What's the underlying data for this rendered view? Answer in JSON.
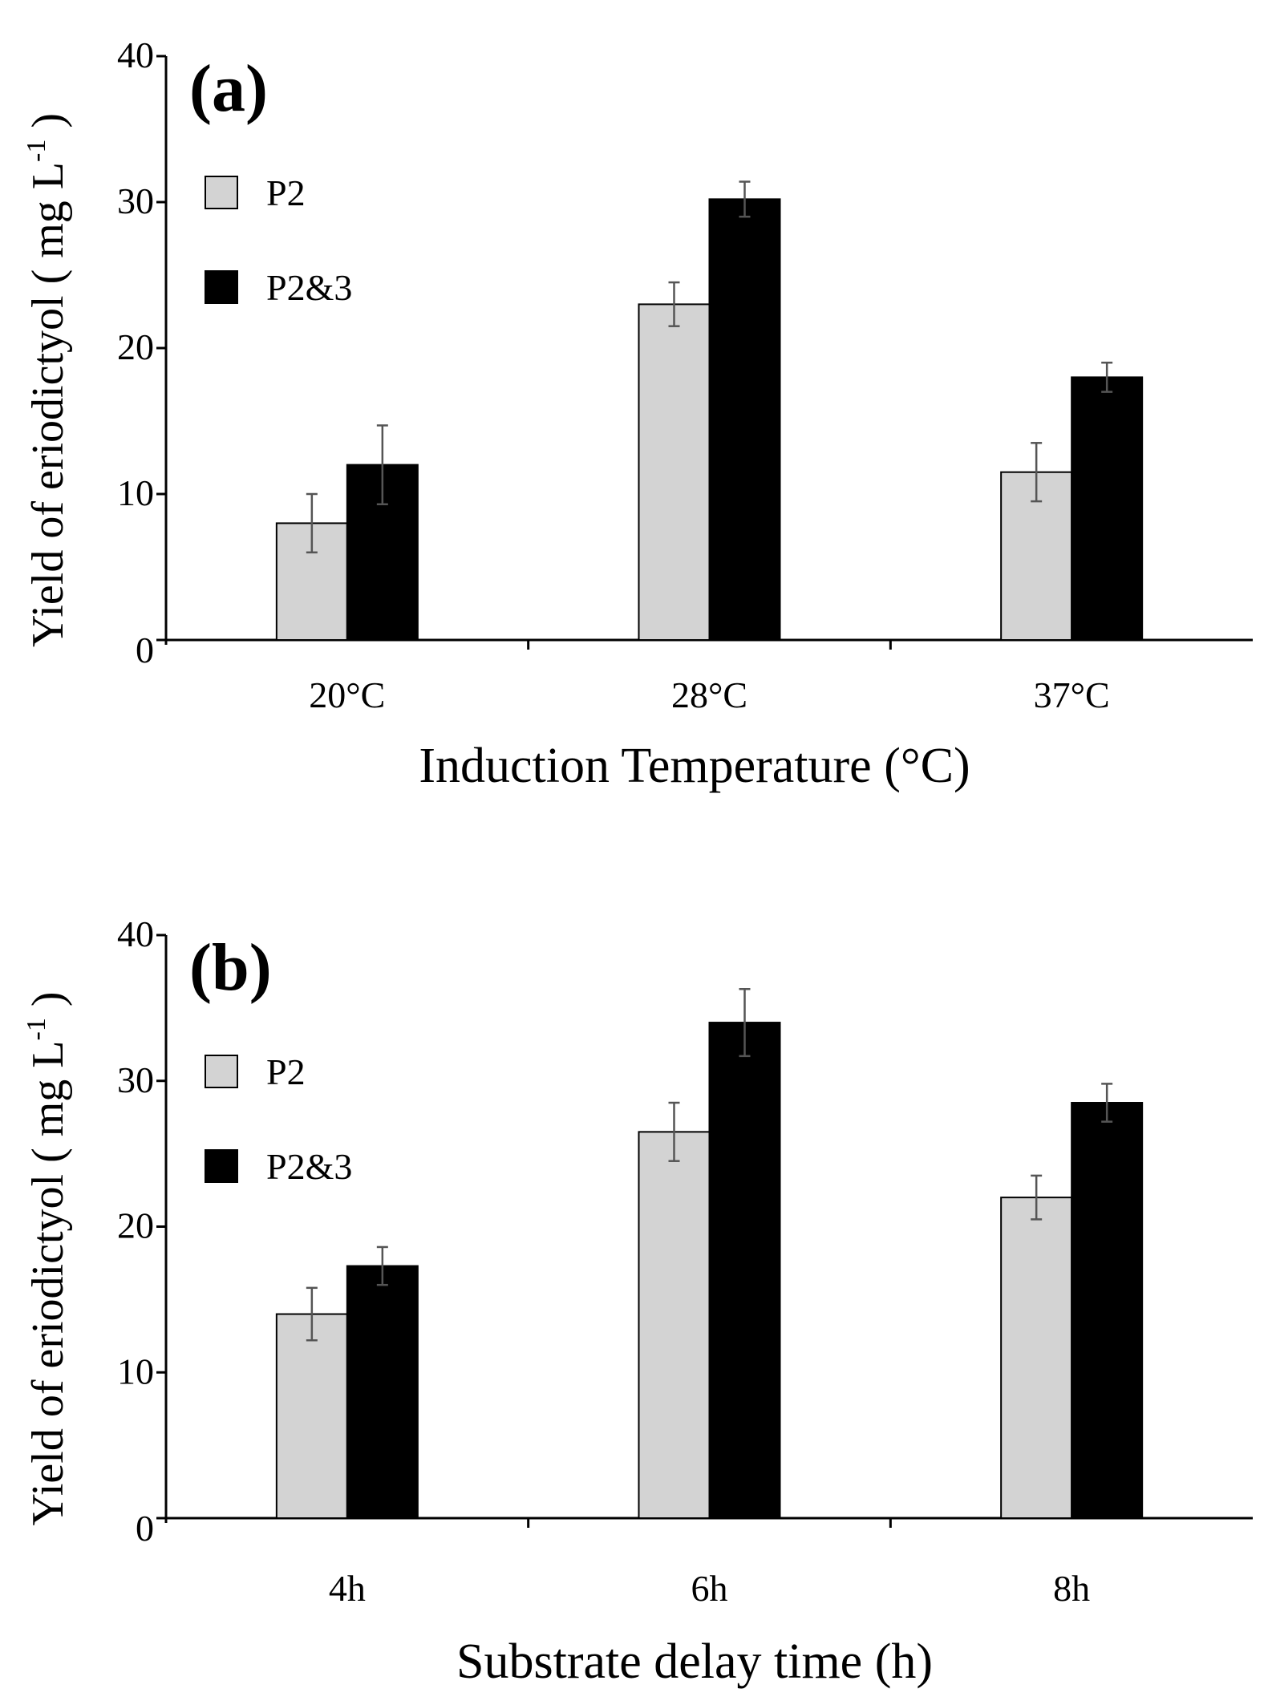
{
  "colors": {
    "P2": "#d3d3d3",
    "P2&3": "#000000",
    "error_bar": "#555555",
    "axis": "#000000"
  },
  "chart_data": [
    {
      "type": "bar",
      "panel_label": "(a)",
      "title": "",
      "xlabel": "Induction Temperature (°C)",
      "ylabel": "Yield of eriodictyol ( mg L-1 )",
      "ylabel_main": "Yield of eriodictyol ( mg L",
      "ylabel_sup": "-1",
      "ylabel_end": " )",
      "ylim": [
        0,
        40
      ],
      "yticks": [
        0,
        10,
        20,
        30,
        40
      ],
      "grid": false,
      "legend_position": "top-left",
      "categories": [
        "20°C",
        "28°C",
        "37°C"
      ],
      "series": [
        {
          "name": "P2",
          "values": [
            8,
            23,
            11.5
          ],
          "errors": [
            2,
            1.5,
            2
          ]
        },
        {
          "name": "P2&3",
          "values": [
            12,
            30.2,
            18
          ],
          "errors": [
            2.7,
            1.2,
            1
          ]
        }
      ]
    },
    {
      "type": "bar",
      "panel_label": "(b)",
      "title": "",
      "xlabel": "Substrate delay time (h)",
      "ylabel": "Yield of eriodictyol ( mg L-1 )",
      "ylabel_main": "Yield of eriodictyol ( mg L",
      "ylabel_sup": "-1",
      "ylabel_end": " )",
      "ylim": [
        0,
        40
      ],
      "yticks": [
        0,
        10,
        20,
        30,
        40
      ],
      "grid": false,
      "legend_position": "top-left",
      "categories": [
        "4h",
        "6h",
        "8h"
      ],
      "series": [
        {
          "name": "P2",
          "values": [
            14,
            26.5,
            22
          ],
          "errors": [
            1.8,
            2,
            1.5
          ]
        },
        {
          "name": "P2&3",
          "values": [
            17.3,
            34,
            28.5
          ],
          "errors": [
            1.3,
            2.3,
            1.3
          ]
        }
      ]
    }
  ]
}
